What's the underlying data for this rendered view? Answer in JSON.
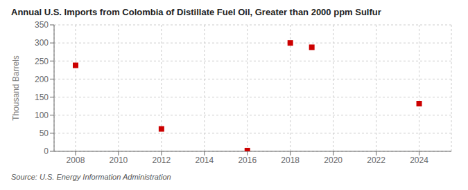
{
  "chart_data": {
    "type": "scatter",
    "title": "Annual U.S. Imports from Colombia of Distillate Fuel Oil, Greater than 2000 ppm Sulfur",
    "ylabel": "Thousand Barrels",
    "annotation": "Source: U.S. Energy Information Administration",
    "x": [
      2008,
      2012,
      2016,
      2018,
      2019,
      2024
    ],
    "values": [
      238,
      62,
      2,
      300,
      288,
      132
    ],
    "color": "#cc0000",
    "marker": "square",
    "xlim": [
      2007,
      2025.5
    ],
    "xticks": [
      2008,
      2010,
      2012,
      2014,
      2016,
      2018,
      2020,
      2022,
      2024
    ],
    "ylim": [
      0,
      350
    ],
    "yticks": [
      0,
      50,
      100,
      150,
      200,
      250,
      300,
      350
    ],
    "grid": true
  }
}
